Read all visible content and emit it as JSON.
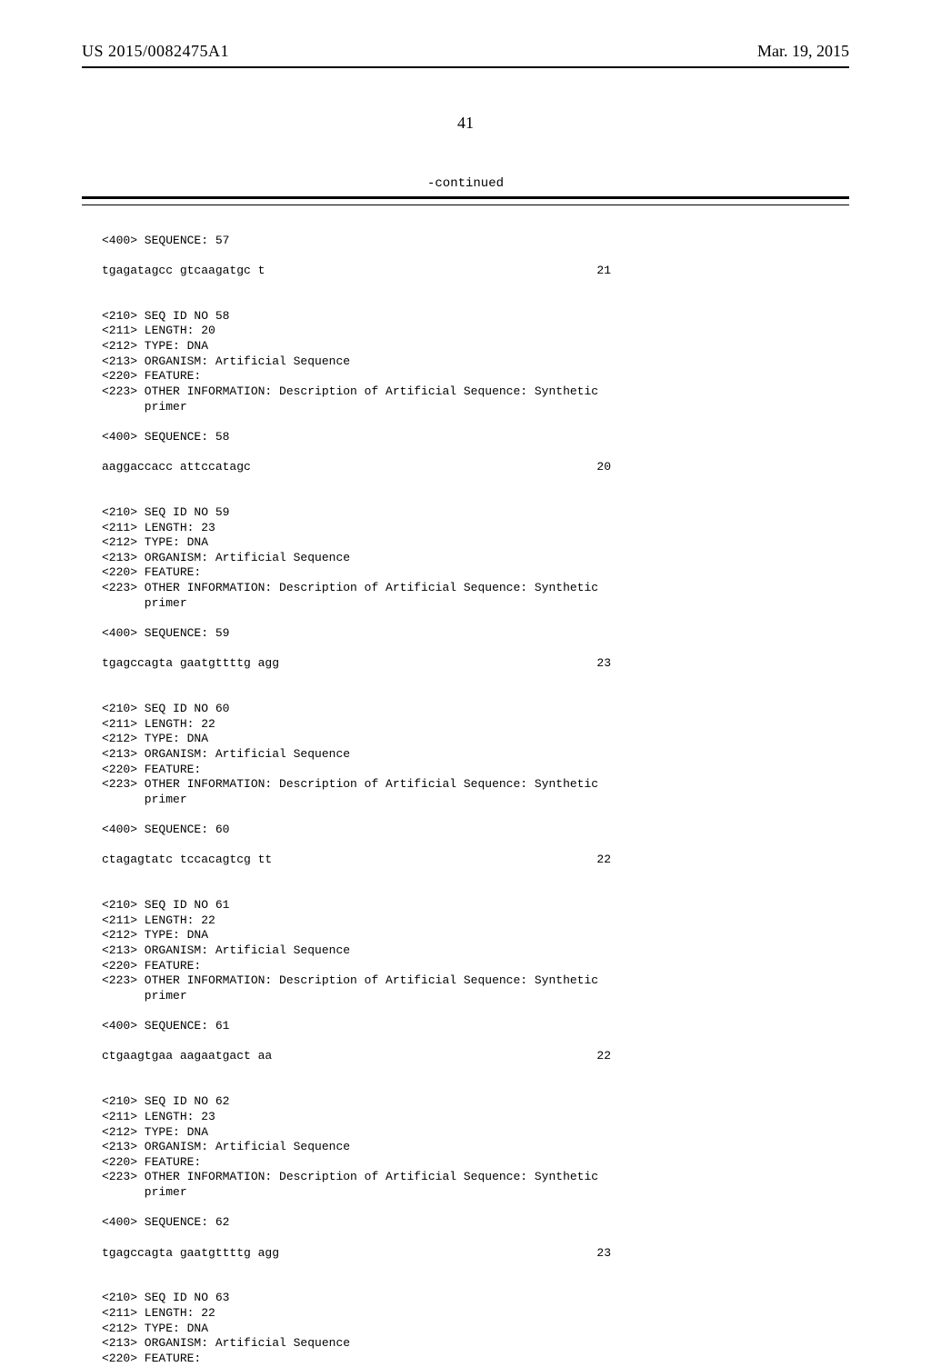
{
  "header": {
    "left": "US 2015/0082475A1",
    "right": "Mar. 19, 2015"
  },
  "pageNumber": "41",
  "continued": "-continued",
  "blocks": [
    {
      "type": "blank"
    },
    {
      "type": "line",
      "text": "<400> SEQUENCE: 57"
    },
    {
      "type": "blank"
    },
    {
      "type": "seq",
      "text": "tgagatagcc gtcaagatgc t",
      "num": "21"
    },
    {
      "type": "blank"
    },
    {
      "type": "blank"
    },
    {
      "type": "line",
      "text": "<210> SEQ ID NO 58"
    },
    {
      "type": "line",
      "text": "<211> LENGTH: 20"
    },
    {
      "type": "line",
      "text": "<212> TYPE: DNA"
    },
    {
      "type": "line",
      "text": "<213> ORGANISM: Artificial Sequence"
    },
    {
      "type": "line",
      "text": "<220> FEATURE:"
    },
    {
      "type": "line",
      "text": "<223> OTHER INFORMATION: Description of Artificial Sequence: Synthetic"
    },
    {
      "type": "line",
      "text": "      primer"
    },
    {
      "type": "blank"
    },
    {
      "type": "line",
      "text": "<400> SEQUENCE: 58"
    },
    {
      "type": "blank"
    },
    {
      "type": "seq",
      "text": "aaggaccacc attccatagc",
      "num": "20"
    },
    {
      "type": "blank"
    },
    {
      "type": "blank"
    },
    {
      "type": "line",
      "text": "<210> SEQ ID NO 59"
    },
    {
      "type": "line",
      "text": "<211> LENGTH: 23"
    },
    {
      "type": "line",
      "text": "<212> TYPE: DNA"
    },
    {
      "type": "line",
      "text": "<213> ORGANISM: Artificial Sequence"
    },
    {
      "type": "line",
      "text": "<220> FEATURE:"
    },
    {
      "type": "line",
      "text": "<223> OTHER INFORMATION: Description of Artificial Sequence: Synthetic"
    },
    {
      "type": "line",
      "text": "      primer"
    },
    {
      "type": "blank"
    },
    {
      "type": "line",
      "text": "<400> SEQUENCE: 59"
    },
    {
      "type": "blank"
    },
    {
      "type": "seq",
      "text": "tgagccagta gaatgttttg agg",
      "num": "23"
    },
    {
      "type": "blank"
    },
    {
      "type": "blank"
    },
    {
      "type": "line",
      "text": "<210> SEQ ID NO 60"
    },
    {
      "type": "line",
      "text": "<211> LENGTH: 22"
    },
    {
      "type": "line",
      "text": "<212> TYPE: DNA"
    },
    {
      "type": "line",
      "text": "<213> ORGANISM: Artificial Sequence"
    },
    {
      "type": "line",
      "text": "<220> FEATURE:"
    },
    {
      "type": "line",
      "text": "<223> OTHER INFORMATION: Description of Artificial Sequence: Synthetic"
    },
    {
      "type": "line",
      "text": "      primer"
    },
    {
      "type": "blank"
    },
    {
      "type": "line",
      "text": "<400> SEQUENCE: 60"
    },
    {
      "type": "blank"
    },
    {
      "type": "seq",
      "text": "ctagagtatc tccacagtcg tt",
      "num": "22"
    },
    {
      "type": "blank"
    },
    {
      "type": "blank"
    },
    {
      "type": "line",
      "text": "<210> SEQ ID NO 61"
    },
    {
      "type": "line",
      "text": "<211> LENGTH: 22"
    },
    {
      "type": "line",
      "text": "<212> TYPE: DNA"
    },
    {
      "type": "line",
      "text": "<213> ORGANISM: Artificial Sequence"
    },
    {
      "type": "line",
      "text": "<220> FEATURE:"
    },
    {
      "type": "line",
      "text": "<223> OTHER INFORMATION: Description of Artificial Sequence: Synthetic"
    },
    {
      "type": "line",
      "text": "      primer"
    },
    {
      "type": "blank"
    },
    {
      "type": "line",
      "text": "<400> SEQUENCE: 61"
    },
    {
      "type": "blank"
    },
    {
      "type": "seq",
      "text": "ctgaagtgaa aagaatgact aa",
      "num": "22"
    },
    {
      "type": "blank"
    },
    {
      "type": "blank"
    },
    {
      "type": "line",
      "text": "<210> SEQ ID NO 62"
    },
    {
      "type": "line",
      "text": "<211> LENGTH: 23"
    },
    {
      "type": "line",
      "text": "<212> TYPE: DNA"
    },
    {
      "type": "line",
      "text": "<213> ORGANISM: Artificial Sequence"
    },
    {
      "type": "line",
      "text": "<220> FEATURE:"
    },
    {
      "type": "line",
      "text": "<223> OTHER INFORMATION: Description of Artificial Sequence: Synthetic"
    },
    {
      "type": "line",
      "text": "      primer"
    },
    {
      "type": "blank"
    },
    {
      "type": "line",
      "text": "<400> SEQUENCE: 62"
    },
    {
      "type": "blank"
    },
    {
      "type": "seq",
      "text": "tgagccagta gaatgttttg agg",
      "num": "23"
    },
    {
      "type": "blank"
    },
    {
      "type": "blank"
    },
    {
      "type": "line",
      "text": "<210> SEQ ID NO 63"
    },
    {
      "type": "line",
      "text": "<211> LENGTH: 22"
    },
    {
      "type": "line",
      "text": "<212> TYPE: DNA"
    },
    {
      "type": "line",
      "text": "<213> ORGANISM: Artificial Sequence"
    },
    {
      "type": "line",
      "text": "<220> FEATURE:"
    }
  ]
}
